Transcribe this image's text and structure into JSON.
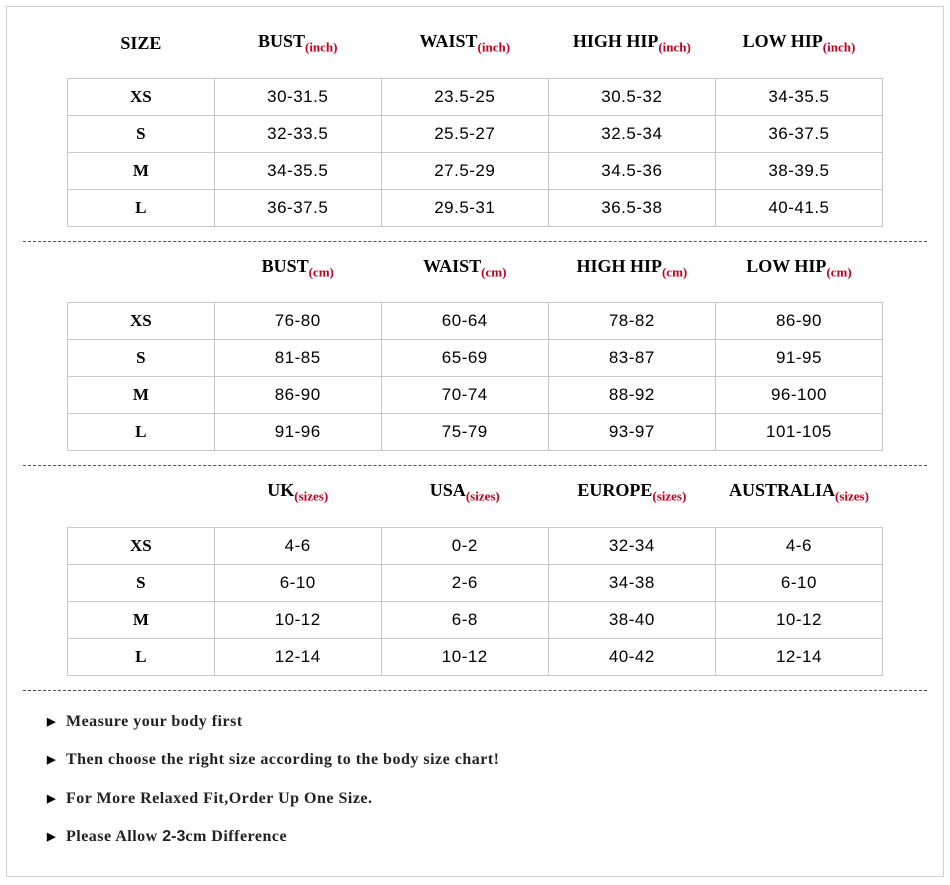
{
  "sizeHeader": "SIZE",
  "sizes": [
    "XS",
    "S",
    "M",
    "L"
  ],
  "tables": [
    {
      "showSizeHeader": true,
      "columns": [
        {
          "label": "BUST",
          "unit": "(inch)"
        },
        {
          "label": "WAIST",
          "unit": "(inch)"
        },
        {
          "label": "HIGH HIP",
          "unit": "(inch)"
        },
        {
          "label": "LOW HIP",
          "unit": "(inch)"
        }
      ],
      "rows": [
        [
          "30-31.5",
          "23.5-25",
          "30.5-32",
          "34-35.5"
        ],
        [
          "32-33.5",
          "25.5-27",
          "32.5-34",
          "36-37.5"
        ],
        [
          "34-35.5",
          "27.5-29",
          "34.5-36",
          "38-39.5"
        ],
        [
          "36-37.5",
          "29.5-31",
          "36.5-38",
          "40-41.5"
        ]
      ]
    },
    {
      "showSizeHeader": false,
      "columns": [
        {
          "label": "BUST",
          "unit": "(cm)"
        },
        {
          "label": "WAIST",
          "unit": "(cm)"
        },
        {
          "label": "HIGH HIP",
          "unit": "(cm)"
        },
        {
          "label": "LOW HIP",
          "unit": "(cm)"
        }
      ],
      "rows": [
        [
          "76-80",
          "60-64",
          "78-82",
          "86-90"
        ],
        [
          "81-85",
          "65-69",
          "83-87",
          "91-95"
        ],
        [
          "86-90",
          "70-74",
          "88-92",
          "96-100"
        ],
        [
          "91-96",
          "75-79",
          "93-97",
          "101-105"
        ]
      ]
    },
    {
      "showSizeHeader": false,
      "columns": [
        {
          "label": "UK",
          "unit": "(sizes)"
        },
        {
          "label": "USA",
          "unit": "(sizes)"
        },
        {
          "label": "EUROPE",
          "unit": "(sizes)"
        },
        {
          "label": "AUSTRALIA",
          "unit": "(sizes)"
        }
      ],
      "rows": [
        [
          "4-6",
          "0-2",
          "32-34",
          "4-6"
        ],
        [
          "6-10",
          "2-6",
          "34-38",
          "6-10"
        ],
        [
          "10-12",
          "6-8",
          "38-40",
          "10-12"
        ],
        [
          "12-14",
          "10-12",
          "40-42",
          "12-14"
        ]
      ]
    }
  ],
  "notes": [
    {
      "text": "Measure your body first"
    },
    {
      "text": "Then choose the right size according to the body size chart!"
    },
    {
      "text": "For More Relaxed Fit,Order Up One Size."
    },
    {
      "prefix": "Please Allow ",
      "mono": "2-3",
      "suffix": "cm Difference"
    }
  ],
  "colors": {
    "unit": "#c00020",
    "border": "#c8c8c8",
    "outer": "#d0d0d0"
  }
}
